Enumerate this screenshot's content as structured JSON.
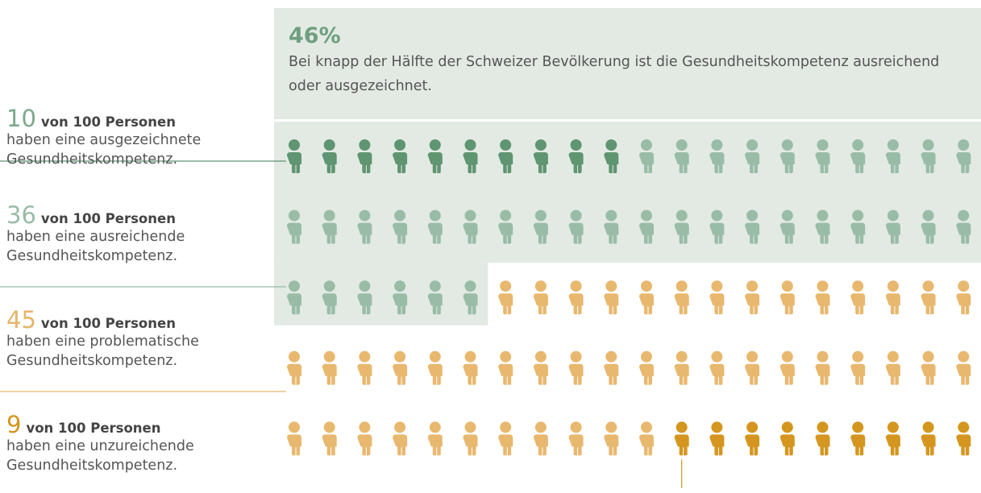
{
  "chart_data": {
    "type": "pictogram",
    "highlight": {
      "value": 46,
      "label": "46%"
    },
    "description": "Bei knapp der Hälfte der Schweizer Bevölkerung ist die Gesundheitskompetenz ausreichend oder ausgezeichnet.",
    "highlight_color": "#e2eae3",
    "columns": 20,
    "series": [
      {
        "value": 10,
        "unit": "von 100 Personen",
        "name": "haben eine ausgezeichnete Gesundheitskompetenz.",
        "color": "#5f9571",
        "label_color": "#7aa88a"
      },
      {
        "value": 36,
        "unit": "von 100 Personen",
        "name": "haben eine ausreichende Gesundheitskompetenz.",
        "color": "#99bca7",
        "label_color": "#99bca7"
      },
      {
        "value": 45,
        "unit": "von 100 Personen",
        "name": "haben eine problematische Gesundheitskompetenz.",
        "color": "#e8b86f",
        "label_color": "#e5b46a"
      },
      {
        "value": 9,
        "unit": "von 100 Personen",
        "name": "haben eine unzureichende Gesundheitskompetenz.",
        "color": "#d4961f",
        "label_color": "#d4961f"
      }
    ]
  }
}
